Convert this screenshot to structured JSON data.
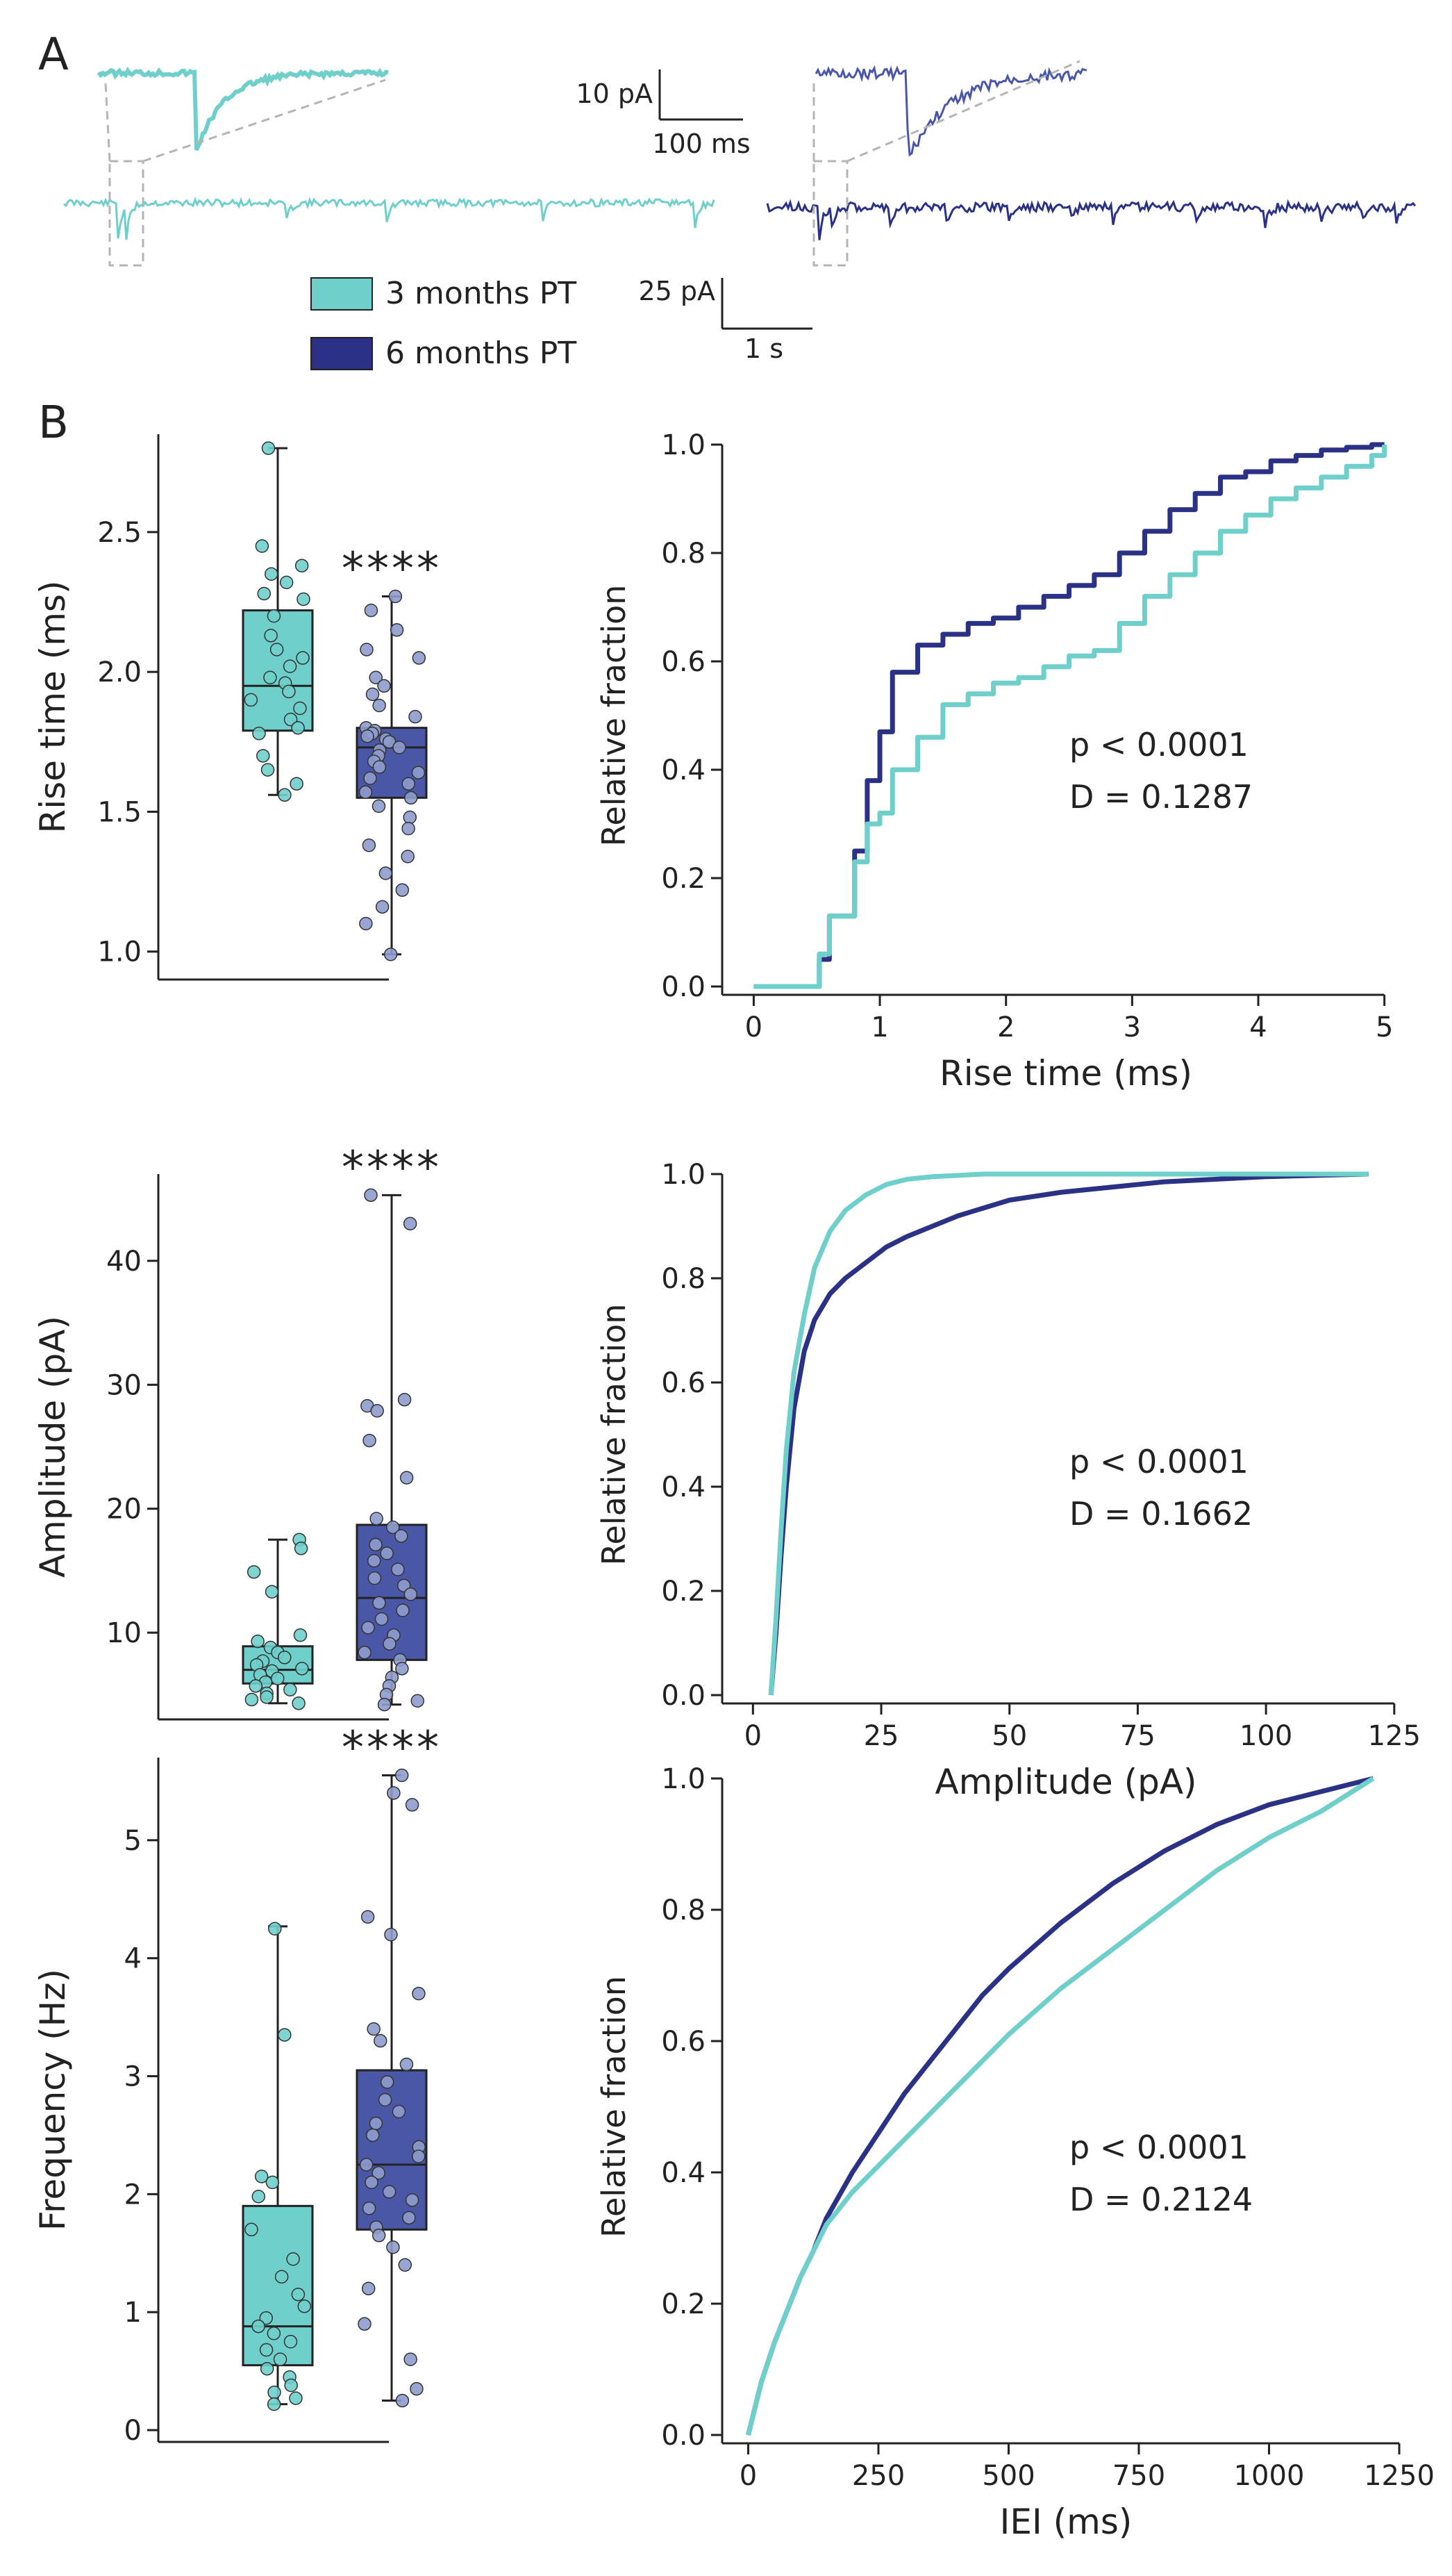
{
  "panels": {
    "a": "A",
    "b": "B"
  },
  "colors": {
    "group1": "#6FCFCB",
    "group1_dark": "#3A9E9A",
    "group2": "#2B3286",
    "group2_mid": "#4A57A7",
    "dot2": "#8E9CCC",
    "axis": "#222222"
  },
  "legend": [
    "3 months PT",
    "6 months PT"
  ],
  "scalebars": {
    "inset_y": "10 pA",
    "inset_x": "100 ms",
    "trace_y": "25 pA",
    "trace_x": "1 s"
  },
  "chart_data": [
    {
      "type": "box",
      "id": "rise_box",
      "ylabel": "Rise time (ms)",
      "yticks": [
        1.0,
        1.5,
        2.0,
        2.5
      ],
      "ylim": [
        0.9,
        2.85
      ],
      "significance": "****",
      "series_names": [
        "3 months PT",
        "6 months PT"
      ],
      "groups": [
        {
          "name": "3 months PT",
          "whisker_min": 1.56,
          "q1": 1.79,
          "median": 1.95,
          "q3": 2.22,
          "whisker_max": 2.8,
          "points": [
            2.8,
            2.45,
            2.38,
            2.35,
            2.32,
            2.28,
            2.26,
            2.2,
            2.13,
            2.08,
            2.05,
            2.02,
            1.98,
            1.96,
            1.93,
            1.9,
            1.87,
            1.83,
            1.8,
            1.78,
            1.7,
            1.65,
            1.6,
            1.56
          ]
        },
        {
          "name": "6 months PT",
          "whisker_min": 0.99,
          "q1": 1.55,
          "median": 1.73,
          "q3": 1.8,
          "whisker_max": 2.27,
          "points": [
            2.27,
            2.22,
            2.15,
            2.08,
            2.05,
            1.98,
            1.95,
            1.92,
            1.88,
            1.84,
            1.8,
            1.79,
            1.78,
            1.77,
            1.76,
            1.75,
            1.73,
            1.72,
            1.7,
            1.68,
            1.66,
            1.64,
            1.62,
            1.6,
            1.57,
            1.55,
            1.52,
            1.48,
            1.44,
            1.38,
            1.34,
            1.28,
            1.22,
            1.16,
            1.1,
            0.99
          ]
        }
      ]
    },
    {
      "type": "step",
      "id": "rise_cdf",
      "xlabel": "Rise time (ms)",
      "ylabel": "Relative fraction",
      "xlim": [
        -0.25,
        5.2
      ],
      "ylim": [
        0,
        1.0
      ],
      "xticks": [
        0,
        1,
        2,
        3,
        4,
        5
      ],
      "yticks": [
        0.0,
        0.2,
        0.4,
        0.6,
        0.8,
        1.0
      ],
      "annotation": [
        "p < 0.0001",
        "D = 0.1287"
      ],
      "series": [
        {
          "name": "3 months PT",
          "x": [
            0,
            0.48,
            0.52,
            0.6,
            0.7,
            0.8,
            0.9,
            1.0,
            1.1,
            1.3,
            1.5,
            1.7,
            1.9,
            2.1,
            2.3,
            2.5,
            2.7,
            2.9,
            3.1,
            3.3,
            3.5,
            3.7,
            3.9,
            4.1,
            4.3,
            4.5,
            4.7,
            4.9,
            5.0
          ],
          "y": [
            0,
            0,
            0.06,
            0.13,
            0.13,
            0.23,
            0.3,
            0.32,
            0.4,
            0.46,
            0.52,
            0.54,
            0.56,
            0.57,
            0.59,
            0.61,
            0.62,
            0.67,
            0.72,
            0.76,
            0.8,
            0.84,
            0.87,
            0.9,
            0.92,
            0.94,
            0.96,
            0.98,
            1.0
          ]
        },
        {
          "name": "6 months PT",
          "x": [
            0,
            0.48,
            0.52,
            0.6,
            0.7,
            0.8,
            0.9,
            1.0,
            1.1,
            1.3,
            1.5,
            1.7,
            1.9,
            2.1,
            2.3,
            2.5,
            2.7,
            2.9,
            3.1,
            3.3,
            3.5,
            3.7,
            3.9,
            4.1,
            4.3,
            4.5,
            4.7,
            4.9,
            5.0
          ],
          "y": [
            0,
            0,
            0.05,
            0.13,
            0.13,
            0.25,
            0.38,
            0.47,
            0.58,
            0.63,
            0.65,
            0.67,
            0.68,
            0.7,
            0.72,
            0.74,
            0.76,
            0.8,
            0.84,
            0.88,
            0.91,
            0.94,
            0.95,
            0.97,
            0.98,
            0.99,
            0.995,
            1.0,
            1.0
          ]
        }
      ]
    },
    {
      "type": "box",
      "id": "amp_box",
      "ylabel": "Amplitude (pA)",
      "yticks": [
        10,
        20,
        30,
        40
      ],
      "ylim": [
        3,
        47
      ],
      "significance": "****",
      "series_names": [
        "3 months PT",
        "6 months PT"
      ],
      "groups": [
        {
          "name": "3 months PT",
          "whisker_min": 4.3,
          "q1": 5.9,
          "median": 7.0,
          "q3": 8.9,
          "whisker_max": 17.5,
          "points": [
            17.5,
            16.8,
            14.9,
            13.3,
            9.8,
            9.3,
            8.8,
            8.4,
            8.0,
            7.7,
            7.4,
            7.1,
            6.9,
            6.6,
            6.3,
            6.0,
            5.7,
            5.4,
            5.1,
            4.8,
            4.6,
            4.3
          ]
        },
        {
          "name": "6 months PT",
          "whisker_min": 4.2,
          "q1": 7.8,
          "median": 12.8,
          "q3": 18.7,
          "whisker_max": 45.3,
          "points": [
            45.3,
            43.0,
            28.8,
            28.3,
            27.9,
            25.5,
            22.5,
            19.2,
            18.5,
            17.8,
            17.1,
            16.4,
            15.8,
            15.1,
            14.4,
            13.8,
            13.1,
            12.4,
            11.8,
            11.1,
            10.4,
            9.8,
            9.1,
            8.4,
            7.8,
            7.1,
            6.4,
            5.7,
            5.0,
            4.5,
            4.2
          ]
        }
      ]
    },
    {
      "type": "line",
      "id": "amp_cdf",
      "xlabel": "Amplitude (pA)",
      "ylabel": "Relative fraction",
      "xlim": [
        -6,
        128
      ],
      "ylim": [
        0,
        1.0
      ],
      "xticks": [
        0,
        25,
        50,
        75,
        100,
        125
      ],
      "yticks": [
        0.0,
        0.2,
        0.4,
        0.6,
        0.8,
        1.0
      ],
      "annotation": [
        "p < 0.0001",
        "D = 0.1662"
      ],
      "series": [
        {
          "name": "3 months PT",
          "x": [
            3.5,
            4.5,
            5.5,
            6.5,
            8,
            10,
            12,
            15,
            18,
            22,
            26,
            30,
            35,
            45,
            60,
            120
          ],
          "y": [
            0,
            0.15,
            0.32,
            0.47,
            0.62,
            0.73,
            0.82,
            0.89,
            0.93,
            0.96,
            0.98,
            0.99,
            0.995,
            1.0,
            1.0,
            1.0
          ]
        },
        {
          "name": "6 months PT",
          "x": [
            3.5,
            4.5,
            5.5,
            6.5,
            8,
            10,
            12,
            15,
            18,
            22,
            26,
            30,
            35,
            40,
            45,
            50,
            60,
            70,
            80,
            90,
            100,
            120
          ],
          "y": [
            0,
            0.12,
            0.27,
            0.4,
            0.55,
            0.66,
            0.72,
            0.77,
            0.8,
            0.83,
            0.86,
            0.88,
            0.9,
            0.92,
            0.935,
            0.95,
            0.965,
            0.975,
            0.985,
            0.99,
            0.995,
            1.0
          ]
        }
      ]
    },
    {
      "type": "box",
      "id": "freq_box",
      "ylabel": "Frequency (Hz)",
      "yticks": [
        0,
        1,
        2,
        3,
        4,
        5
      ],
      "ylim": [
        -0.1,
        5.7
      ],
      "significance": "****",
      "series_names": [
        "3 months PT",
        "6 months PT"
      ],
      "groups": [
        {
          "name": "3 months PT",
          "whisker_min": 0.22,
          "q1": 0.55,
          "median": 0.88,
          "q3": 1.9,
          "whisker_max": 4.27,
          "points": [
            4.25,
            3.35,
            2.15,
            2.1,
            1.98,
            1.7,
            1.45,
            1.3,
            1.15,
            1.05,
            0.95,
            0.88,
            0.82,
            0.75,
            0.68,
            0.6,
            0.52,
            0.45,
            0.38,
            0.32,
            0.27,
            0.22
          ]
        },
        {
          "name": "6 months PT",
          "whisker_min": 0.25,
          "q1": 1.7,
          "median": 2.25,
          "q3": 3.05,
          "whisker_max": 5.55,
          "points": [
            5.55,
            5.4,
            5.3,
            4.35,
            4.2,
            3.7,
            3.4,
            3.3,
            3.1,
            2.95,
            2.8,
            2.7,
            2.6,
            2.5,
            2.4,
            2.32,
            2.25,
            2.18,
            2.1,
            2.02,
            1.95,
            1.88,
            1.8,
            1.72,
            1.65,
            1.55,
            1.4,
            1.2,
            0.9,
            0.6,
            0.35,
            0.25
          ]
        }
      ]
    },
    {
      "type": "line",
      "id": "iei_cdf",
      "xlabel": "IEI (ms)",
      "ylabel": "Relative fraction",
      "xlim": [
        -50,
        1270
      ],
      "ylim": [
        0,
        1.0
      ],
      "xticks": [
        0,
        250,
        500,
        750,
        1000,
        1250
      ],
      "yticks": [
        0.0,
        0.2,
        0.4,
        0.6,
        0.8,
        1.0
      ],
      "annotation": [
        "p < 0.0001",
        "D = 0.2124"
      ],
      "series": [
        {
          "name": "3 months PT",
          "x": [
            0,
            25,
            50,
            75,
            100,
            125,
            150,
            200,
            250,
            300,
            350,
            400,
            450,
            500,
            600,
            700,
            800,
            900,
            1000,
            1100,
            1200
          ],
          "y": [
            0,
            0.08,
            0.14,
            0.19,
            0.24,
            0.28,
            0.32,
            0.37,
            0.41,
            0.45,
            0.49,
            0.53,
            0.57,
            0.61,
            0.68,
            0.74,
            0.8,
            0.86,
            0.91,
            0.95,
            1.0
          ]
        },
        {
          "name": "6 months PT",
          "x": [
            0,
            25,
            50,
            75,
            100,
            125,
            150,
            200,
            250,
            300,
            350,
            400,
            450,
            500,
            600,
            700,
            800,
            900,
            1000,
            1100,
            1200
          ],
          "y": [
            0,
            0.08,
            0.14,
            0.19,
            0.24,
            0.28,
            0.33,
            0.4,
            0.46,
            0.52,
            0.57,
            0.62,
            0.67,
            0.71,
            0.78,
            0.84,
            0.89,
            0.93,
            0.96,
            0.98,
            1.0
          ]
        }
      ]
    }
  ]
}
